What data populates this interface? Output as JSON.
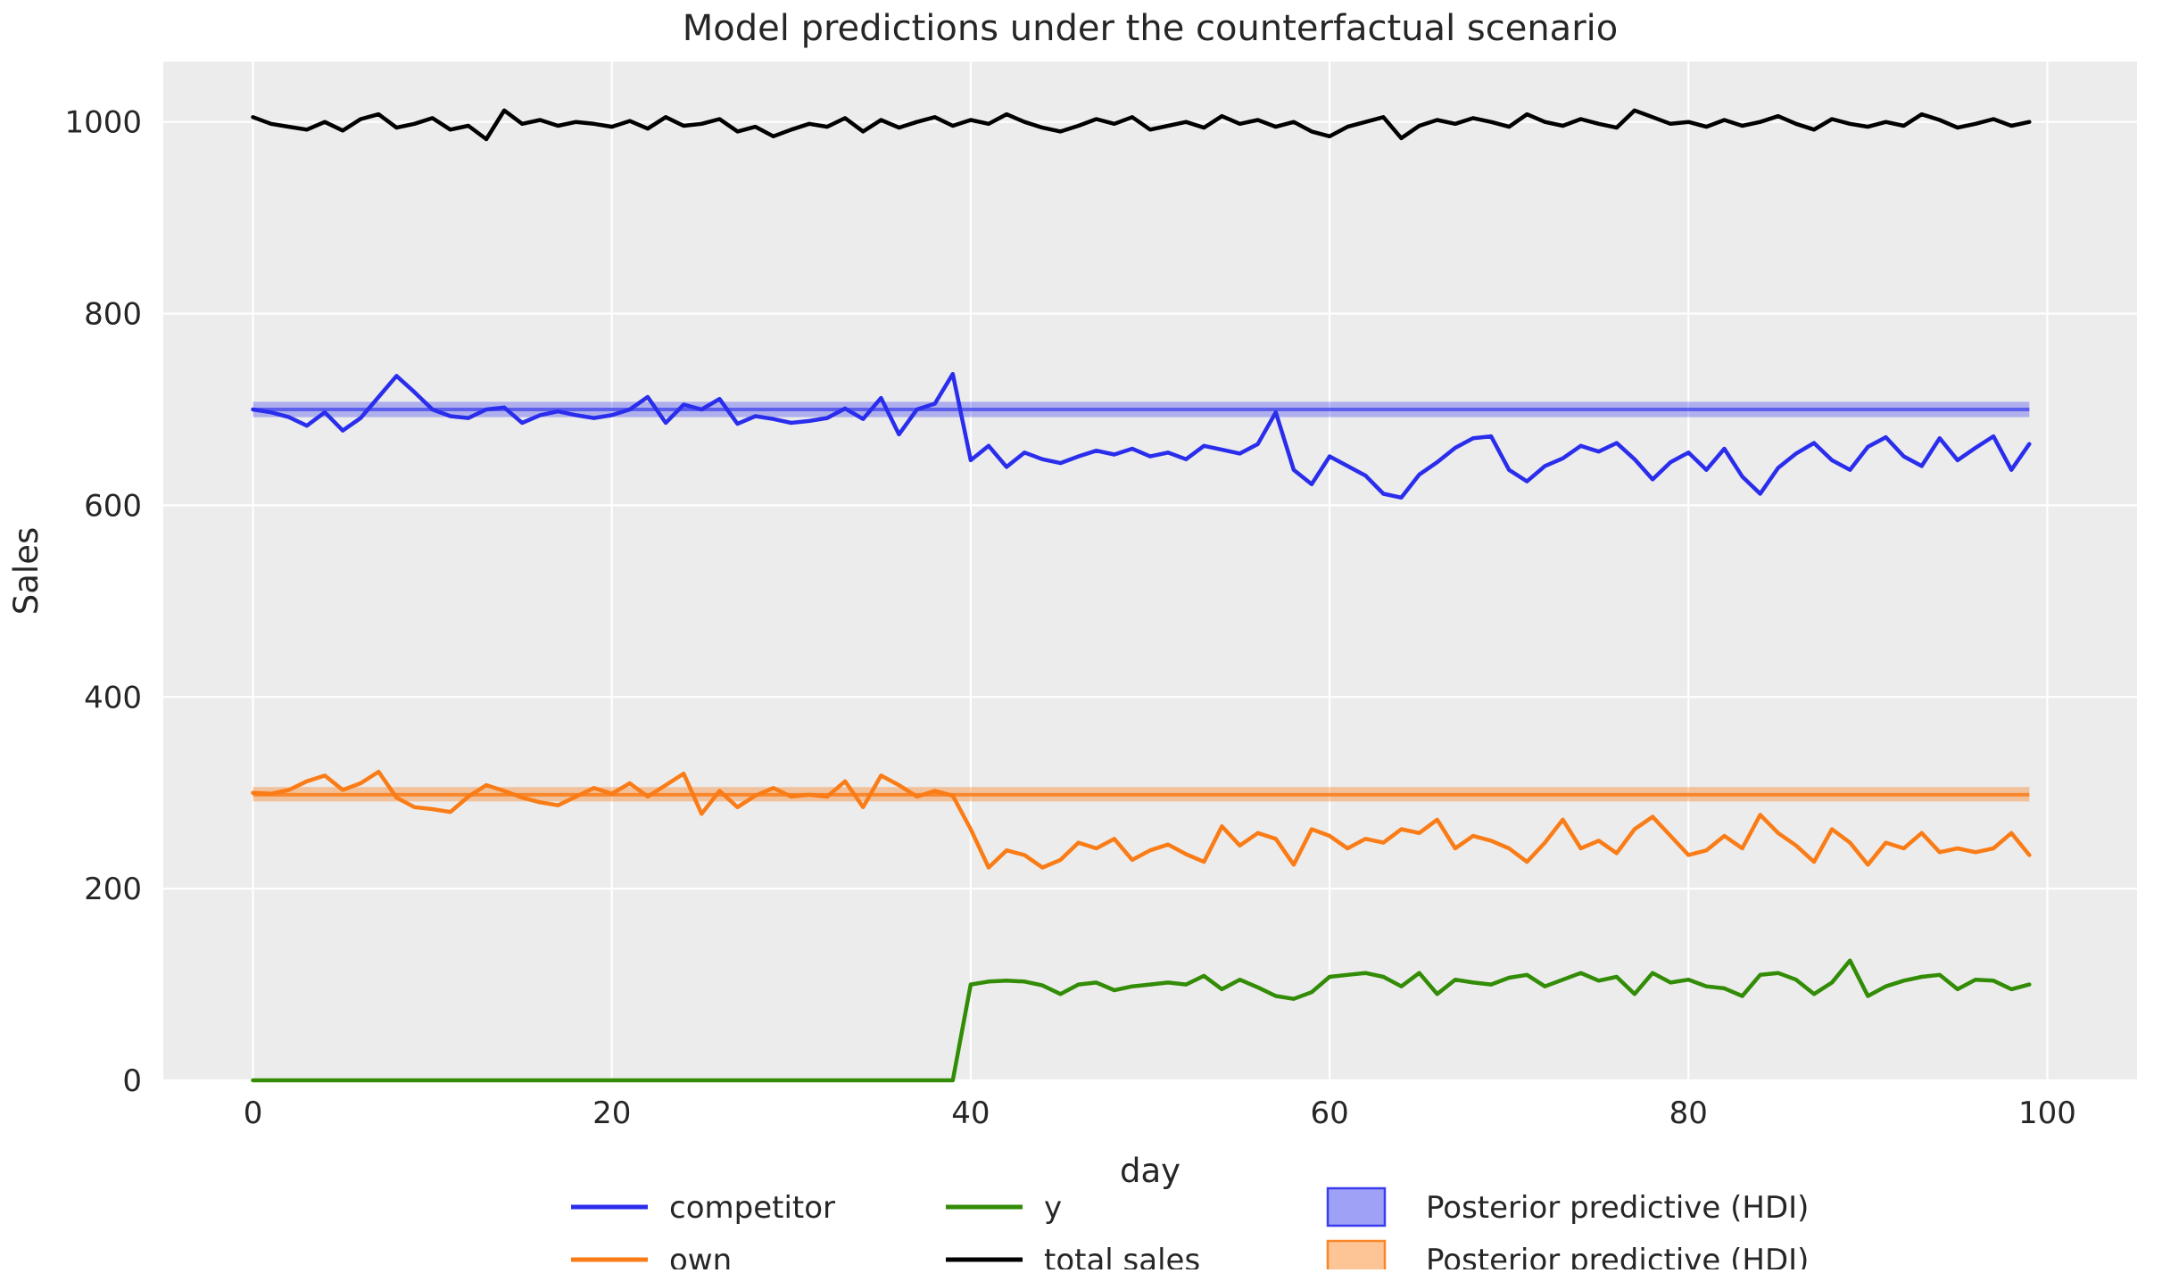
{
  "figure": {
    "background": "#ffffff",
    "plot_background": "#ececec",
    "grid_color": "#ffffff",
    "text_color": "#262626"
  },
  "chart_data": {
    "type": "line",
    "title": "Model predictions under the counterfactual scenario",
    "xlabel": "day",
    "ylabel": "Sales",
    "xlim": [
      -5,
      105
    ],
    "ylim": [
      0,
      1063
    ],
    "x_ticks": [
      0,
      20,
      40,
      60,
      80,
      100
    ],
    "y_ticks": [
      0,
      200,
      400,
      600,
      800,
      1000
    ],
    "grid": true,
    "legend_position": "below-plot, 3 columns",
    "days": {
      "from": 0,
      "to": 99,
      "step": 1
    },
    "series": [
      {
        "name": "competitor",
        "color": "#2a2eec",
        "values": [
          700,
          697,
          692,
          683,
          697,
          678,
          691,
          713,
          735,
          718,
          700,
          693,
          691,
          700,
          702,
          686,
          694,
          698,
          694,
          691,
          694,
          700,
          713,
          686,
          705,
          700,
          711,
          685,
          693,
          690,
          686,
          688,
          691,
          701,
          690,
          712,
          674,
          700,
          706,
          737,
          647,
          662,
          640,
          655,
          648,
          644,
          651,
          657,
          653,
          659,
          651,
          655,
          648,
          662,
          658,
          654,
          664,
          697,
          637,
          622,
          651,
          641,
          631,
          612,
          608,
          632,
          645,
          660,
          670,
          672,
          637,
          625,
          641,
          649,
          662,
          656,
          665,
          648,
          627,
          645,
          655,
          637,
          659,
          630,
          612,
          639,
          654,
          665,
          647,
          637,
          661,
          671,
          651,
          641,
          670,
          647,
          660,
          672,
          637,
          664
        ]
      },
      {
        "name": "own",
        "color": "#fa7c17",
        "values": [
          300,
          299,
          303,
          312,
          318,
          303,
          310,
          322,
          295,
          285,
          283,
          280,
          296,
          308,
          302,
          295,
          290,
          287,
          296,
          305,
          299,
          310,
          296,
          308,
          320,
          278,
          302,
          285,
          297,
          305,
          296,
          298,
          296,
          312,
          285,
          318,
          308,
          296,
          302,
          297,
          262,
          222,
          240,
          235,
          222,
          230,
          248,
          242,
          252,
          230,
          240,
          246,
          236,
          228,
          265,
          245,
          258,
          252,
          225,
          262,
          255,
          242,
          252,
          248,
          262,
          258,
          272,
          242,
          255,
          250,
          242,
          228,
          248,
          272,
          242,
          250,
          237,
          262,
          275,
          255,
          235,
          240,
          255,
          242,
          277,
          258,
          245,
          228,
          262,
          248,
          225,
          248,
          242,
          258,
          238,
          242,
          238,
          242,
          258,
          235
        ]
      },
      {
        "name": "y",
        "color": "#328c06",
        "values": [
          0,
          0,
          0,
          0,
          0,
          0,
          0,
          0,
          0,
          0,
          0,
          0,
          0,
          0,
          0,
          0,
          0,
          0,
          0,
          0,
          0,
          0,
          0,
          0,
          0,
          0,
          0,
          0,
          0,
          0,
          0,
          0,
          0,
          0,
          0,
          0,
          0,
          0,
          0,
          0,
          100,
          103,
          104,
          103,
          99,
          90,
          100,
          102,
          94,
          98,
          100,
          102,
          100,
          109,
          95,
          105,
          97,
          88,
          85,
          92,
          108,
          110,
          112,
          108,
          98,
          112,
          90,
          105,
          102,
          100,
          107,
          110,
          98,
          105,
          112,
          104,
          108,
          90,
          112,
          102,
          105,
          98,
          96,
          88,
          110,
          112,
          105,
          90,
          102,
          125,
          88,
          98,
          104,
          108,
          110,
          95,
          105,
          104,
          95,
          100
        ]
      },
      {
        "name": "total sales",
        "color": "#000000",
        "values": [
          1005,
          998,
          995,
          992,
          1000,
          991,
          1003,
          1008,
          994,
          998,
          1004,
          992,
          996,
          982,
          1012,
          998,
          1002,
          996,
          1000,
          998,
          995,
          1001,
          993,
          1005,
          996,
          998,
          1003,
          990,
          995,
          985,
          992,
          998,
          995,
          1004,
          990,
          1002,
          994,
          1000,
          1005,
          996,
          1002,
          998,
          1008,
          1000,
          994,
          990,
          996,
          1003,
          998,
          1005,
          992,
          996,
          1000,
          994,
          1006,
          998,
          1002,
          995,
          1000,
          990,
          985,
          995,
          1000,
          1005,
          983,
          996,
          1002,
          998,
          1004,
          1000,
          995,
          1008,
          1000,
          996,
          1003,
          998,
          994,
          1012,
          1005,
          998,
          1000,
          995,
          1002,
          996,
          1000,
          1006,
          998,
          992,
          1003,
          998,
          995,
          1000,
          996,
          1008,
          1002,
          994,
          998,
          1003,
          996,
          1000
        ]
      }
    ],
    "hdi_bands": [
      {
        "name": "Posterior predictive (HDI)",
        "color": "#2a2eec",
        "lo": 692,
        "hi": 708,
        "mean": 700,
        "day_start": 0,
        "day_end": 99,
        "fill_opacity": 0.32,
        "mean_line_opacity": 0.62
      },
      {
        "name": "Posterior predictive (HDI)",
        "color": "#fa7c17",
        "lo": 291,
        "hi": 306,
        "mean": 298,
        "day_start": 0,
        "day_end": 99,
        "fill_opacity": 0.38,
        "mean_line_opacity": 0.85
      }
    ],
    "legend": [
      {
        "label": "competitor",
        "type": "line",
        "color": "#2a2eec"
      },
      {
        "label": "own",
        "type": "line",
        "color": "#fa7c17"
      },
      {
        "label": "y",
        "type": "line",
        "color": "#328c06"
      },
      {
        "label": "total sales",
        "type": "line",
        "color": "#000000"
      },
      {
        "label": "Posterior predictive (HDI)",
        "type": "patch",
        "color": "#2a2eec"
      },
      {
        "label": "Posterior predictive (HDI)",
        "type": "patch",
        "color": "#fa7c17"
      }
    ]
  }
}
